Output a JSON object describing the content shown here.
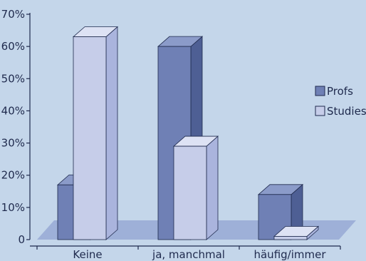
{
  "chart_data": {
    "type": "bar",
    "categories": [
      "Keine",
      "ja, manchmal",
      "häufig/immer"
    ],
    "series": [
      {
        "name": "Profs",
        "values": [
          17,
          60,
          14
        ]
      },
      {
        "name": "Studies",
        "values": [
          63,
          29,
          1
        ]
      }
    ],
    "ylim": [
      0,
      70
    ],
    "yticks": [
      "0",
      "10%",
      "20%",
      "30%",
      "40%",
      "50%",
      "60%",
      "70%"
    ],
    "legend_position": "right",
    "grid": false,
    "colors": {
      "background": "#c4d6ea",
      "floor": "#9eb0d8",
      "profs_front": "#6f80b5",
      "profs_side": "#4e5f94",
      "profs_top": "#8b9bc9",
      "studies_front": "#c6cde9",
      "studies_side": "#aab4dd",
      "studies_top": "#dde2f4",
      "outline": "#1f2a4d"
    }
  }
}
